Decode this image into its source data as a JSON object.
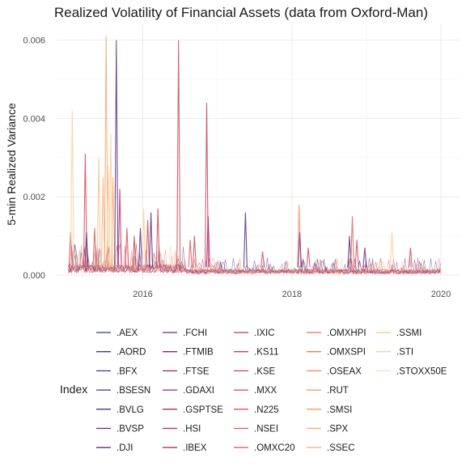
{
  "chart_data": {
    "type": "line",
    "title": "Realized Volatility of Financial Assets (data from Oxford-Man)",
    "xlabel": "",
    "ylabel": "5-min Realized Variance",
    "x_range": [
      "2015-01-01",
      "2020-01-01"
    ],
    "ylim": [
      0,
      0.0062
    ],
    "x_ticks": [
      {
        "label": "2016",
        "date": "2016-01-01"
      },
      {
        "label": "2018",
        "date": "2018-01-01"
      },
      {
        "label": "2020",
        "date": "2020-01-01"
      }
    ],
    "y_ticks": [
      {
        "label": "0.000",
        "value": 0.0
      },
      {
        "label": "0.002",
        "value": 0.002
      },
      {
        "label": "0.004",
        "value": 0.004
      },
      {
        "label": "0.006",
        "value": 0.006
      }
    ],
    "grid": true,
    "legend": {
      "title": "Index",
      "position": "bottom",
      "entries": [
        ".AEX",
        ".AORD",
        ".BFX",
        ".BSESN",
        ".BVLG",
        ".BVSP",
        ".DJI",
        ".FCHI",
        ".FTMIB",
        ".FTSE",
        ".GDAXI",
        ".GSPTSE",
        ".HSI",
        ".IBEX",
        ".IXIC",
        ".KS11",
        ".KSE",
        ".MXX",
        ".N225",
        ".NSEI",
        ".OMXC20",
        ".OMXHPI",
        ".OMXSPI",
        ".OSEAX",
        ".RUT",
        ".SMSI",
        ".SPX",
        ".SSEC",
        ".SSMI",
        ".STI",
        ".STOXX50E"
      ],
      "colors": [
        "#3a3c7a",
        "#3d3a78",
        "#44377a",
        "#4a347c",
        "#52317e",
        "#5a2e80",
        "#632c80",
        "#6b2a80",
        "#7a2a7e",
        "#86297a",
        "#922a77",
        "#9e2b73",
        "#aa2c6e",
        "#b52f69",
        "#bd3366",
        "#c43a62",
        "#cc405e",
        "#d4475b",
        "#db4f58",
        "#e05957",
        "#e66356",
        "#ea6c57",
        "#ee775a",
        "#f1825f",
        "#f48e63",
        "#f69a6a",
        "#f8a672",
        "#fab37b",
        "#fbc088",
        "#fccf98",
        "#fdddaa"
      ]
    },
    "series_spikes": [
      {
        "date": "2015-01-12",
        "value": 0.0011,
        "color": "#d4475b"
      },
      {
        "date": "2015-01-20",
        "value": 0.0042,
        "color": "#fccf98"
      },
      {
        "date": "2015-03-25",
        "value": 0.0031,
        "color": "#d4475b"
      },
      {
        "date": "2015-03-31",
        "value": 0.0011,
        "color": "#5a2e80"
      },
      {
        "date": "2015-05-10",
        "value": 0.0012,
        "color": "#e05957"
      },
      {
        "date": "2015-05-30",
        "value": 0.003,
        "color": "#fbc088"
      },
      {
        "date": "2015-06-20",
        "value": 0.0025,
        "color": "#fab37b"
      },
      {
        "date": "2015-07-05",
        "value": 0.0061,
        "color": "#f8a672"
      },
      {
        "date": "2015-07-16",
        "value": 0.0028,
        "color": "#fccf98"
      },
      {
        "date": "2015-07-28",
        "value": 0.0036,
        "color": "#fccf98"
      },
      {
        "date": "2015-08-08",
        "value": 0.0025,
        "color": "#fab37b"
      },
      {
        "date": "2015-08-24",
        "value": 0.006,
        "color": "#5a2e80"
      },
      {
        "date": "2015-09-10",
        "value": 0.0022,
        "color": "#bd3366"
      },
      {
        "date": "2015-10-15",
        "value": 0.0012,
        "color": "#db4f58"
      },
      {
        "date": "2015-11-20",
        "value": 0.001,
        "color": "#d4475b"
      },
      {
        "date": "2015-12-20",
        "value": 0.0012,
        "color": "#5a2e80"
      },
      {
        "date": "2016-01-05",
        "value": 0.0017,
        "color": "#fccf98"
      },
      {
        "date": "2016-01-25",
        "value": 0.0014,
        "color": "#d4475b"
      },
      {
        "date": "2016-02-10",
        "value": 0.0016,
        "color": "#52317e"
      },
      {
        "date": "2016-03-15",
        "value": 0.0017,
        "color": "#d4475b"
      },
      {
        "date": "2016-06-24",
        "value": 0.006,
        "color": "#d4475b"
      },
      {
        "date": "2016-08-20",
        "value": 0.0009,
        "color": "#e05957"
      },
      {
        "date": "2016-09-10",
        "value": 0.001,
        "color": "#d4475b"
      },
      {
        "date": "2016-11-09",
        "value": 0.0044,
        "color": "#cc405e"
      },
      {
        "date": "2016-11-16",
        "value": 0.0015,
        "color": "#aa2c6e"
      },
      {
        "date": "2017-05-18",
        "value": 0.0016,
        "color": "#52317e"
      },
      {
        "date": "2017-08-10",
        "value": 0.0006,
        "color": "#d4475b"
      },
      {
        "date": "2018-02-05",
        "value": 0.0018,
        "color": "#f48e63"
      },
      {
        "date": "2018-02-08",
        "value": 0.0011,
        "color": "#86297a"
      },
      {
        "date": "2018-03-22",
        "value": 0.0007,
        "color": "#d4475b"
      },
      {
        "date": "2018-10-10",
        "value": 0.001,
        "color": "#5a2e80"
      },
      {
        "date": "2018-10-24",
        "value": 0.0015,
        "color": "#e66356"
      },
      {
        "date": "2018-11-15",
        "value": 0.0009,
        "color": "#d4475b"
      },
      {
        "date": "2018-12-24",
        "value": 0.0007,
        "color": "#6b2a80"
      },
      {
        "date": "2019-05-06",
        "value": 0.0011,
        "color": "#fccf98"
      },
      {
        "date": "2019-08-05",
        "value": 0.0007,
        "color": "#d4475b"
      }
    ]
  }
}
